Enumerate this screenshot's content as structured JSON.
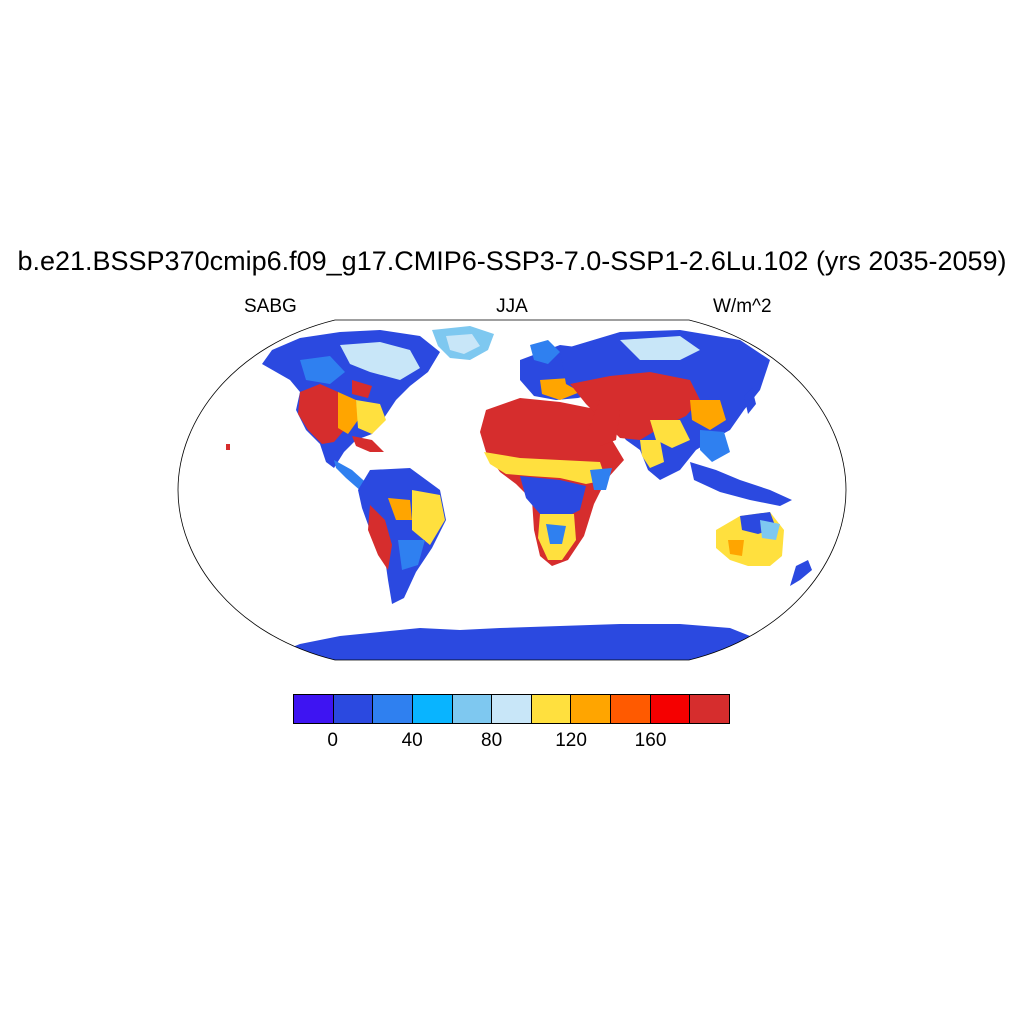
{
  "title": "b.e21.BSSP370cmip6.f09_g17.CMIP6-SSP3-7.0-SSP1-2.6Lu.102 (yrs 2035-2059)",
  "left_label": "SABG",
  "center_label": "JJA",
  "right_label": "W/m^2",
  "colorbar": {
    "colors": [
      "#3e14f2",
      "#2b49e0",
      "#2f80f0",
      "#09b4ff",
      "#7ec8f0",
      "#c8e6f8",
      "#ffe03e",
      "#ffa500",
      "#ff5a00",
      "#f50000",
      "#d62d2d"
    ],
    "tick_labels": [
      "0",
      "40",
      "80",
      "120",
      "160"
    ]
  },
  "palette": {
    "low": "#2b49e0",
    "mid_low": "#2f80f0",
    "light": "#c8e6f8",
    "yellow": "#ffe03e",
    "orange": "#ffa500",
    "high": "#d62d2d"
  }
}
